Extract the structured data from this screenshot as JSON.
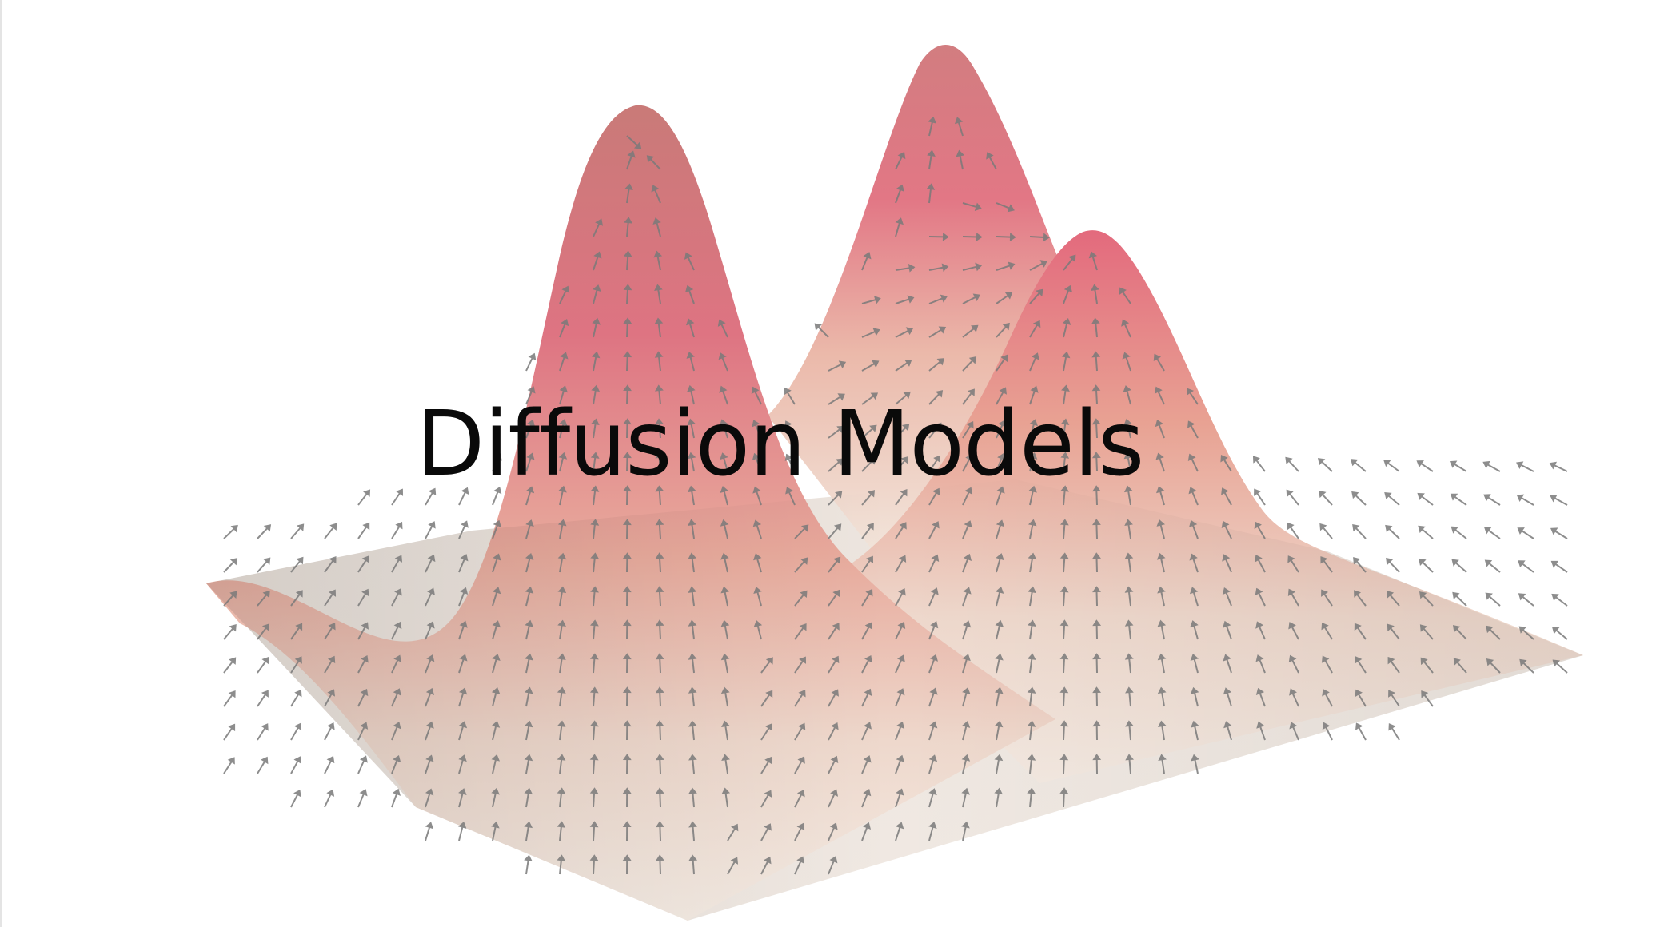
{
  "slide": {
    "title": "Diffusion Models"
  },
  "illustration": {
    "icon": "gaussian-mixture-surface-with-score-vector-field",
    "colors": {
      "surface_base": "#f2e9e0",
      "surface_peak": "#e07880",
      "arrow": "#777777"
    }
  }
}
